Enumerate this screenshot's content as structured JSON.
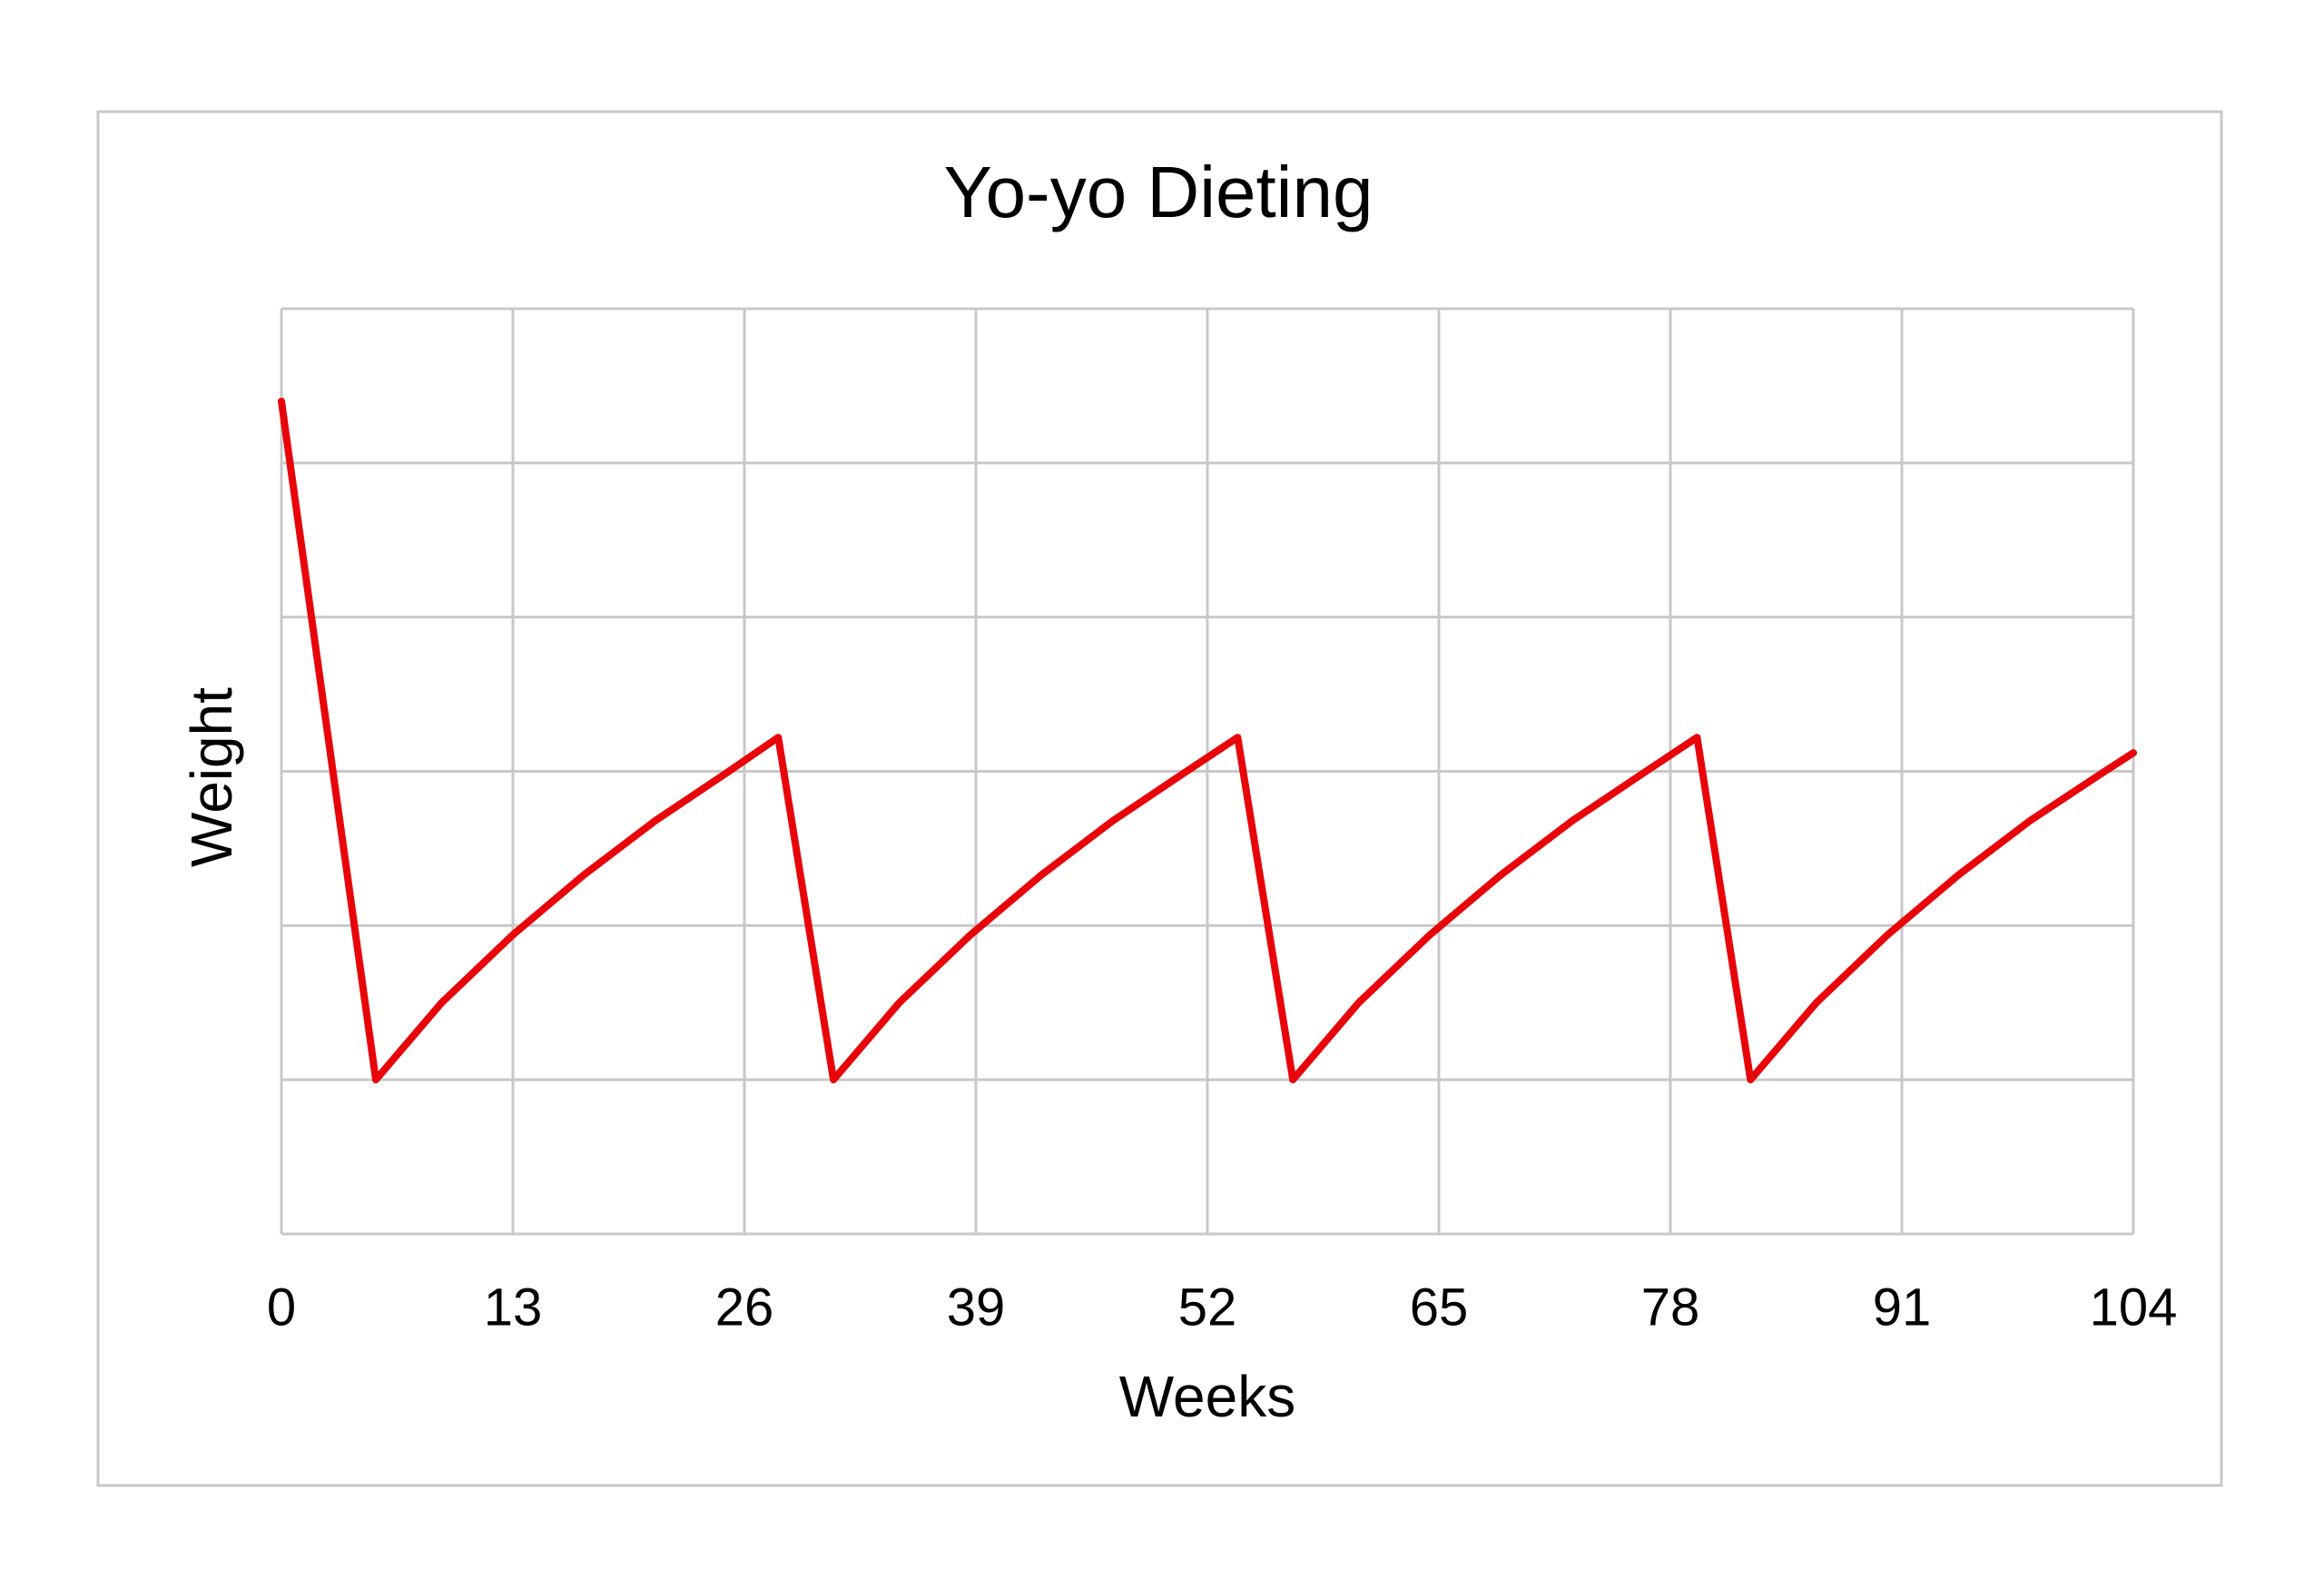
{
  "chart_data": {
    "type": "line",
    "title": "Yo-yo Dieting",
    "x_label": "Weeks",
    "y_label": "Weight",
    "x": [
      0,
      5.3,
      9,
      13,
      17,
      21,
      25,
      27.9,
      31,
      34.7,
      38.7,
      42.7,
      46.7,
      50.7,
      53.7,
      56.8,
      60.5,
      64.5,
      68.5,
      72.5,
      76.5,
      79.5,
      82.5,
      86.2,
      90.2,
      94.2,
      98.2,
      102,
      104
    ],
    "series": [
      {
        "color": "#e8050a",
        "values": [
          5.4,
          1.0,
          1.5,
          1.94,
          2.33,
          2.68,
          2.99,
          3.22,
          1.0,
          1.5,
          1.94,
          2.33,
          2.68,
          2.99,
          3.22,
          1.0,
          1.5,
          1.94,
          2.33,
          2.68,
          2.99,
          3.22,
          1.0,
          1.5,
          1.94,
          2.33,
          2.68,
          2.97,
          3.12
        ]
      }
    ],
    "xlim": [
      0,
      104
    ],
    "xticks": [
      0,
      13,
      26,
      39,
      52,
      65,
      78,
      91,
      104
    ],
    "ylim": [
      0,
      6
    ],
    "yticks": [
      0,
      1,
      2,
      3,
      4,
      5,
      6
    ],
    "grid": true
  }
}
